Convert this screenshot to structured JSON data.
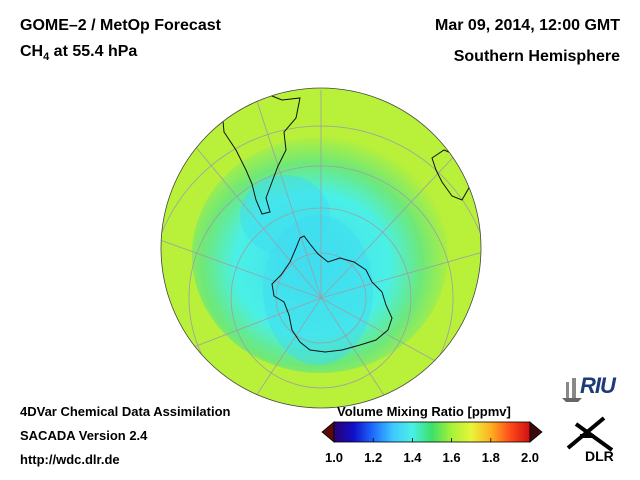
{
  "header": {
    "title_main": "GOME–2 / MetOp Forecast",
    "title_species_prefix": "CH",
    "title_species_sub": "4",
    "title_species_suffix": " at 55.4 hPa",
    "date": "Mar 09, 2014, 12:00 GMT",
    "hemisphere": "Southern Hemisphere"
  },
  "footer": {
    "line1": "4DVar Chemical Data Assimilation",
    "line2": "SACADA Version 2.4",
    "line3": "http://wdc.dlr.de"
  },
  "colorbar": {
    "title": "Volume Mixing Ratio [ppmv]",
    "min": 1.0,
    "max": 2.0,
    "ticks": [
      "1.0",
      "1.2",
      "1.4",
      "1.6",
      "1.8",
      "2.0"
    ],
    "colors": [
      "#5a0a0a",
      "#2a0070",
      "#1010c8",
      "#1e6cff",
      "#3fc8ff",
      "#4af0e6",
      "#3ce066",
      "#a8f03a",
      "#e8f53a",
      "#ffb020",
      "#ff4a1a",
      "#cc1010",
      "#3a0a0a"
    ]
  },
  "map": {
    "projection": "orthographic south polar",
    "background_level": "1.65",
    "inner_level": "1.45",
    "core_level": "1.40",
    "colors": {
      "background": "#b8f03a",
      "mid": "#6ee878",
      "inner": "#4af0e6",
      "core": "#40dcf0",
      "land_line": "#111111",
      "grid_line": "#9aa0a8"
    }
  },
  "logos": {
    "riu": "RIU",
    "dlr": "DLR"
  }
}
